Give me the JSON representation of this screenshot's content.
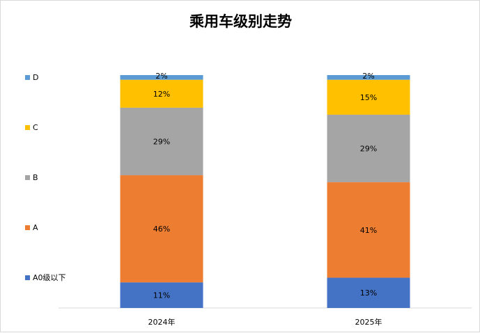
{
  "chart_data": {
    "type": "bar",
    "stacked": true,
    "percent": true,
    "title": "乘用车级别走势",
    "categories": [
      "2024年",
      "2025年"
    ],
    "series": [
      {
        "name": "A0级以下",
        "values": [
          11,
          13
        ],
        "labels": [
          "11%",
          "13%"
        ],
        "color": "#4472c4"
      },
      {
        "name": "A",
        "values": [
          46,
          41
        ],
        "labels": [
          "46%",
          "41%"
        ],
        "color": "#ed7d31"
      },
      {
        "name": "B",
        "values": [
          29,
          29
        ],
        "labels": [
          "29%",
          "29%"
        ],
        "color": "#a5a5a5"
      },
      {
        "name": "C",
        "values": [
          12,
          15
        ],
        "labels": [
          "12%",
          "15%"
        ],
        "color": "#ffc000"
      },
      {
        "name": "D",
        "values": [
          2,
          2
        ],
        "labels": [
          "2%",
          "2%"
        ],
        "color": "#5b9bd5"
      }
    ],
    "ylim": [
      0,
      100
    ],
    "grid": false,
    "legend": "left"
  }
}
